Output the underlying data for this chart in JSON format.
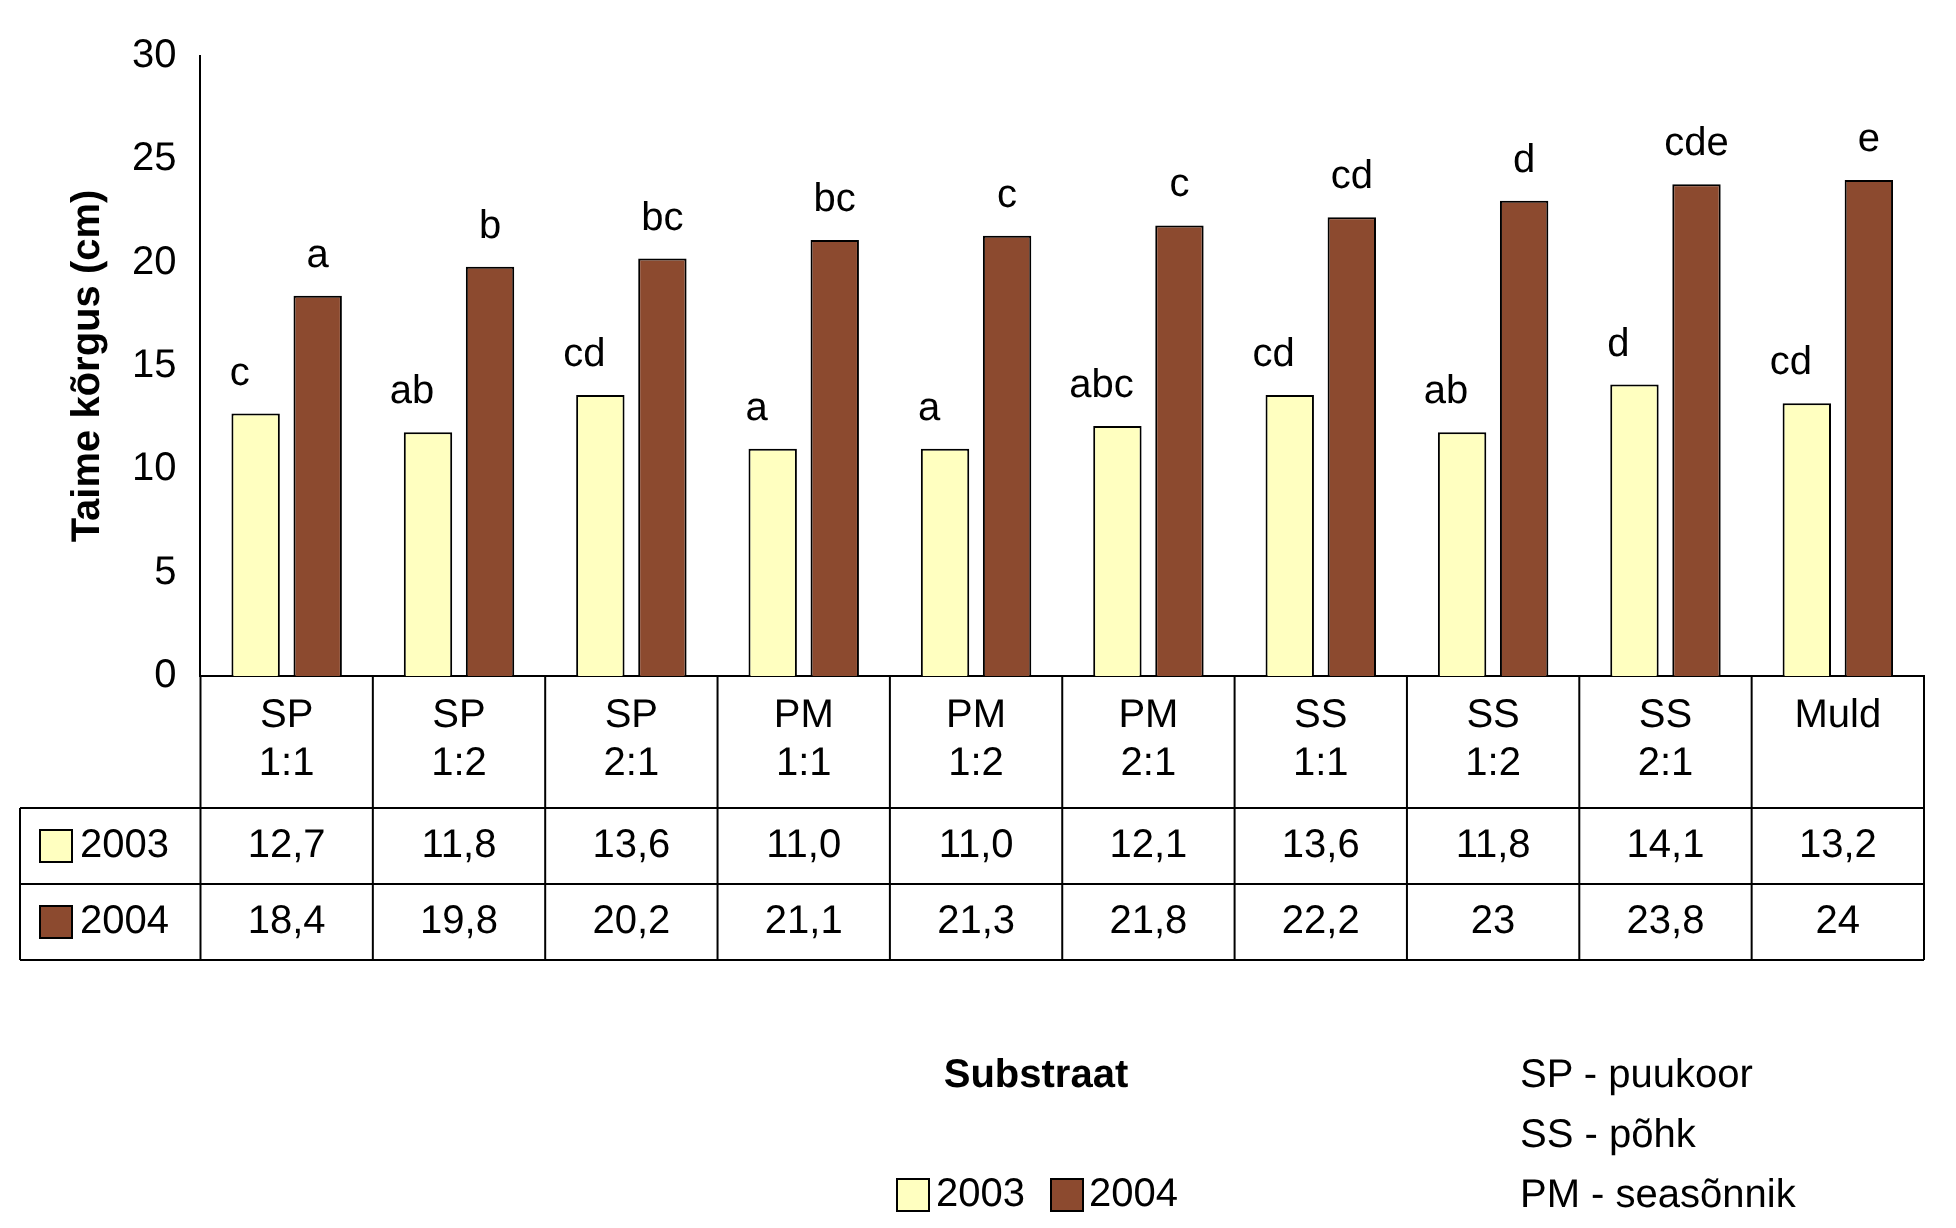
{
  "chart_data": {
    "type": "bar",
    "ylabel": "Taime kõrgus (cm)",
    "categories": [
      "SP 1:1",
      "SP 1:2",
      "SP 2:1",
      "PM 1:1",
      "PM 1:2",
      "PM 2:1",
      "SS 1:1",
      "SS 1:2",
      "SS 2:1",
      "Muld"
    ],
    "series": [
      {
        "name": "2003",
        "color": "#ffffc0",
        "values": [
          12.7,
          11.8,
          13.6,
          11.0,
          11.0,
          12.1,
          13.6,
          11.8,
          14.1,
          13.2
        ],
        "value_labels": [
          "12,7",
          "11,8",
          "13,6",
          "11,0",
          "11,0",
          "12,1",
          "13,6",
          "11,8",
          "14,1",
          "13,2"
        ]
      },
      {
        "name": "2004",
        "color": "#8c4a2f",
        "values": [
          18.4,
          19.8,
          20.2,
          21.1,
          21.3,
          21.8,
          22.2,
          23,
          23.8,
          24
        ],
        "value_labels": [
          "18,4",
          "19,8",
          "20,2",
          "21,1",
          "21,3",
          "21,8",
          "22,2",
          "23",
          "23,8",
          "24"
        ]
      }
    ],
    "ylim": [
      0,
      30
    ],
    "yticks": [
      0,
      5,
      10,
      15,
      20,
      25,
      30
    ],
    "grid": false,
    "legend": "bottom",
    "annotations": [
      {
        "text": "c",
        "x": "SP 1:1",
        "y": 12.7
      },
      {
        "text": "a",
        "x": "SP 1:1",
        "y": 18.4
      },
      {
        "text": "ab",
        "x": "SP 1:2",
        "y": 11.8
      },
      {
        "text": "b",
        "x": "SP 1:2",
        "y": 19.8
      },
      {
        "text": "cd",
        "x": "SP 2:1",
        "y": 13.6
      },
      {
        "text": "bc",
        "x": "SP 2:1",
        "y": 20.2
      },
      {
        "text": "a",
        "x": "PM 1:1",
        "y": 11.0
      },
      {
        "text": "bc",
        "x": "PM 1:1",
        "y": 21.1
      },
      {
        "text": "a",
        "x": "PM 1:2",
        "y": 11.0
      },
      {
        "text": "c",
        "x": "PM 1:2",
        "y": 21.3
      },
      {
        "text": "abc",
        "x": "PM 2:1",
        "y": 12.1
      },
      {
        "text": "c",
        "x": "PM 2:1",
        "y": 21.8
      },
      {
        "text": "cd",
        "x": "SS 1:1",
        "y": 13.6
      },
      {
        "text": "cd",
        "x": "SS 1:1",
        "y": 22.2
      },
      {
        "text": "ab",
        "x": "SS 1:2",
        "y": 11.8
      },
      {
        "text": "d",
        "x": "SS 1:2",
        "y": 23
      },
      {
        "text": "d",
        "x": "SS 2:1",
        "y": 14.1
      },
      {
        "text": "cde",
        "x": "SS 2:1",
        "y": 23.8
      },
      {
        "text": "cd",
        "x": "Muld",
        "y": 13.2
      },
      {
        "text": "e",
        "x": "Muld",
        "y": 24
      },
      "Substraat",
      "SP - puukoor",
      "SS - põhk",
      "PM - seasõnnik"
    ]
  }
}
